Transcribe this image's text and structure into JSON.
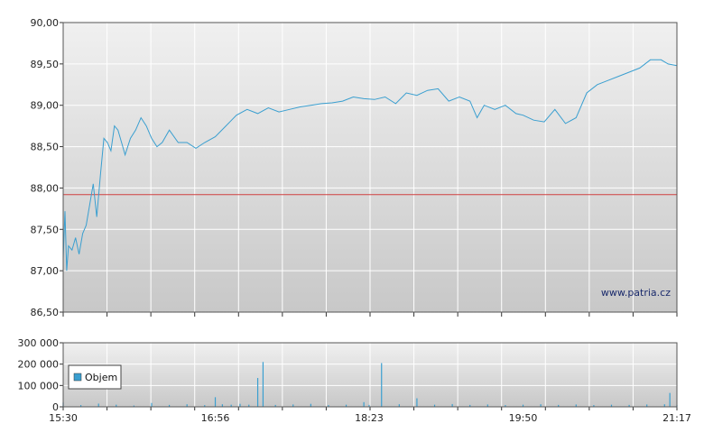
{
  "colors": {
    "line": "#3a9fd0",
    "reference_line": "#d04040",
    "volume": "#3a9fd0",
    "grid": "#ffffff",
    "axis": "#333333",
    "panel_top": "#f0f0f0",
    "panel_bottom": "#c8c8c8"
  },
  "watermark": "www.patria.cz",
  "legend": {
    "label": "Objem",
    "placement": "left"
  },
  "chart_data": [
    {
      "type": "line",
      "title": "",
      "xlabel": "",
      "ylabel": "",
      "ylim": [
        86.5,
        90.0
      ],
      "y_ticks": [
        "90,00",
        "89,50",
        "89,00",
        "88,50",
        "88,00",
        "87,50",
        "87,00",
        "86,50"
      ],
      "y_tick_values": [
        90.0,
        89.5,
        89.0,
        88.5,
        88.0,
        87.5,
        87.0,
        86.5
      ],
      "x_range": [
        "15:30",
        "21:17"
      ],
      "x_tick_labels": [
        "15:30",
        "16:56",
        "18:23",
        "19:50",
        "21:17"
      ],
      "grid": true,
      "reference_value": 87.92,
      "series": [
        {
          "x": [
            "15:30",
            "15:31",
            "15:32",
            "15:33",
            "15:35",
            "15:37",
            "15:39",
            "15:41",
            "15:43",
            "15:45",
            "15:47",
            "15:49",
            "15:51",
            "15:53",
            "15:55",
            "15:57",
            "15:59",
            "16:01",
            "16:03",
            "16:05",
            "16:08",
            "16:11",
            "16:14",
            "16:17",
            "16:20",
            "16:23",
            "16:26",
            "16:30",
            "16:35",
            "16:40",
            "16:45",
            "16:50",
            "16:56",
            "17:02",
            "17:08",
            "17:14",
            "17:20",
            "17:26",
            "17:32",
            "17:38",
            "17:44",
            "17:50",
            "17:56",
            "18:02",
            "18:08",
            "18:14",
            "18:20",
            "18:26",
            "18:32",
            "18:38",
            "18:44",
            "18:50",
            "18:56",
            "19:02",
            "19:08",
            "19:14",
            "19:20",
            "19:24",
            "19:28",
            "19:34",
            "19:40",
            "19:46",
            "19:50",
            "19:56",
            "20:02",
            "20:08",
            "20:14",
            "20:20",
            "20:26",
            "20:32",
            "20:38",
            "20:44",
            "20:50",
            "20:56",
            "21:02",
            "21:08",
            "21:12",
            "21:17"
          ],
          "values": [
            87.15,
            87.72,
            87.0,
            87.3,
            87.25,
            87.4,
            87.2,
            87.45,
            87.55,
            87.8,
            88.05,
            87.65,
            88.15,
            88.6,
            88.55,
            88.45,
            88.75,
            88.7,
            88.55,
            88.4,
            88.6,
            88.7,
            88.85,
            88.75,
            88.6,
            88.5,
            88.55,
            88.7,
            88.55,
            88.55,
            88.48,
            88.55,
            88.62,
            88.75,
            88.88,
            88.95,
            88.9,
            88.97,
            88.92,
            88.95,
            88.98,
            89.0,
            89.02,
            89.03,
            89.05,
            89.1,
            89.08,
            89.07,
            89.1,
            89.02,
            89.15,
            89.12,
            89.18,
            89.2,
            89.05,
            89.1,
            89.05,
            88.85,
            89.0,
            88.95,
            89.0,
            88.9,
            88.88,
            88.82,
            88.8,
            88.95,
            88.78,
            88.85,
            89.15,
            89.25,
            89.3,
            89.35,
            89.4,
            89.45,
            89.55,
            89.55,
            89.5,
            89.48
          ]
        }
      ]
    },
    {
      "type": "bar",
      "title": "",
      "xlabel": "",
      "ylabel": "",
      "ylim": [
        0,
        300000
      ],
      "y_ticks": [
        "300 000",
        "200 000",
        "100 000",
        "0"
      ],
      "y_tick_values": [
        300000,
        200000,
        100000,
        0
      ],
      "x_range": [
        "15:30",
        "21:17"
      ],
      "x_tick_labels": [
        "15:30",
        "16:56",
        "18:23",
        "19:50",
        "21:17"
      ],
      "grid": true,
      "series": [
        {
          "name": "Objem",
          "x": [
            "15:30",
            "15:40",
            "15:50",
            "16:00",
            "16:10",
            "16:20",
            "16:30",
            "16:40",
            "16:50",
            "16:56",
            "17:00",
            "17:05",
            "17:10",
            "17:15",
            "17:20",
            "17:23",
            "17:30",
            "17:40",
            "17:50",
            "18:00",
            "18:10",
            "18:20",
            "18:23",
            "18:30",
            "18:40",
            "18:50",
            "19:00",
            "19:10",
            "19:20",
            "19:30",
            "19:40",
            "19:50",
            "20:00",
            "20:10",
            "20:20",
            "20:30",
            "20:40",
            "20:50",
            "21:00",
            "21:10",
            "21:13",
            "21:17"
          ],
          "values": [
            20000,
            8000,
            15000,
            10000,
            6000,
            18000,
            9000,
            12000,
            8000,
            45000,
            12000,
            10000,
            14000,
            10000,
            135000,
            210000,
            9000,
            11000,
            14000,
            8000,
            10000,
            22000,
            9000,
            205000,
            12000,
            40000,
            10000,
            13000,
            9000,
            11000,
            8000,
            10000,
            12000,
            9000,
            11000,
            8000,
            10000,
            9000,
            11000,
            12000,
            65000,
            8000
          ]
        }
      ]
    }
  ]
}
